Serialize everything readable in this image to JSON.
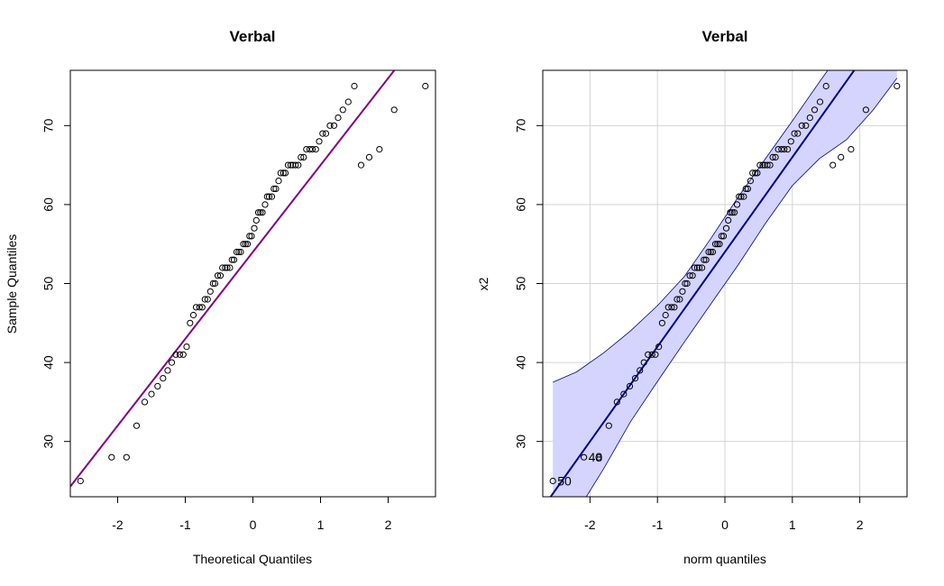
{
  "chart_data": [
    {
      "type": "scatter",
      "title": "Verbal",
      "xlabel": "Theoretical Quantiles",
      "ylabel": "Sample Quantiles",
      "xlim": [
        -2.7,
        2.7
      ],
      "ylim": [
        23,
        77
      ],
      "x_ticks": [
        -2,
        -1,
        0,
        1,
        2
      ],
      "y_ticks": [
        30,
        40,
        50,
        60,
        70
      ],
      "grid": false,
      "reference_line": {
        "color": "#800080",
        "intercept": 54.0,
        "slope": 11.0
      },
      "series": [
        {
          "x": [
            -2.55,
            -2.09,
            -1.87,
            -1.72,
            -1.6,
            -1.5,
            -1.41,
            -1.33,
            -1.26,
            -1.2,
            -1.14,
            -1.08,
            -1.03,
            -0.98,
            -0.93,
            -0.88,
            -0.84,
            -0.79,
            -0.75,
            -0.71,
            -0.67,
            -0.63,
            -0.59,
            -0.56,
            -0.52,
            -0.48,
            -0.45,
            -0.41,
            -0.38,
            -0.34,
            -0.31,
            -0.28,
            -0.24,
            -0.21,
            -0.18,
            -0.14,
            -0.11,
            -0.08,
            -0.05,
            -0.02,
            0.02,
            0.05,
            0.08,
            0.11,
            0.14,
            0.18,
            0.21,
            0.24,
            0.28,
            0.31,
            0.34,
            0.38,
            0.41,
            0.45,
            0.48,
            0.52,
            0.56,
            0.59,
            0.63,
            0.67,
            0.71,
            0.75,
            0.79,
            0.84,
            0.88,
            0.93,
            0.98,
            1.03,
            1.08,
            1.14,
            1.2,
            1.26,
            1.33,
            1.41,
            1.5,
            1.6,
            1.72,
            1.87,
            2.09,
            2.55
          ],
          "y": [
            25,
            28,
            28,
            32,
            35,
            36,
            37,
            38,
            39,
            40,
            41,
            41,
            41,
            42,
            45,
            46,
            47,
            47,
            47,
            48,
            48,
            49,
            50,
            50,
            51,
            51,
            52,
            52,
            52,
            52,
            53,
            53,
            54,
            54,
            54,
            55,
            55,
            55,
            56,
            56,
            57,
            58,
            59,
            59,
            59,
            60,
            61,
            61,
            61,
            62,
            62,
            63,
            64,
            64,
            64,
            65,
            65,
            65,
            65,
            65,
            66,
            66,
            67,
            67,
            67,
            67,
            68,
            69,
            69,
            70,
            70,
            71,
            72,
            73,
            75,
            65,
            66,
            67,
            72,
            75
          ]
        }
      ]
    },
    {
      "type": "scatter",
      "title": "Verbal",
      "xlabel": "norm quantiles",
      "ylabel": "x2",
      "xlim": [
        -2.7,
        2.7
      ],
      "ylim": [
        23,
        77
      ],
      "x_ticks": [
        -2,
        -1,
        0,
        1,
        2
      ],
      "y_ticks": [
        30,
        40,
        50,
        60,
        70
      ],
      "grid": true,
      "reference_line": {
        "color": "#00008B",
        "intercept": 54.0,
        "slope": 12.0
      },
      "envelope": {
        "color": "#D4D4FF",
        "x": [
          -2.55,
          -2.2,
          -1.8,
          -1.4,
          -1.0,
          -0.6,
          -0.2,
          0.2,
          0.6,
          1.0,
          1.4,
          1.8,
          2.2,
          2.55
        ],
        "upper": [
          37.5,
          38.8,
          41.2,
          44.0,
          47.2,
          50.9,
          55.8,
          61.0,
          65.8,
          70.6,
          75.5,
          80.3,
          85.0,
          89.0
        ],
        "lower": [
          18.0,
          21.0,
          26.5,
          32.5,
          37.6,
          42.6,
          47.5,
          52.4,
          57.6,
          62.4,
          65.8,
          68.2,
          72.0,
          76.0
        ]
      },
      "point_labels": [
        {
          "label": "50",
          "x": -2.55,
          "y": 25
        },
        {
          "label": "48",
          "x": -2.09,
          "y": 28
        }
      ],
      "series": [
        {
          "x": [
            -2.55,
            -2.09,
            -1.87,
            -1.72,
            -1.6,
            -1.5,
            -1.41,
            -1.33,
            -1.26,
            -1.2,
            -1.14,
            -1.08,
            -1.03,
            -0.98,
            -0.93,
            -0.88,
            -0.84,
            -0.79,
            -0.75,
            -0.71,
            -0.67,
            -0.63,
            -0.59,
            -0.56,
            -0.52,
            -0.48,
            -0.45,
            -0.41,
            -0.38,
            -0.34,
            -0.31,
            -0.28,
            -0.24,
            -0.21,
            -0.18,
            -0.14,
            -0.11,
            -0.08,
            -0.05,
            -0.02,
            0.02,
            0.05,
            0.08,
            0.11,
            0.14,
            0.18,
            0.21,
            0.24,
            0.28,
            0.31,
            0.34,
            0.38,
            0.41,
            0.45,
            0.48,
            0.52,
            0.56,
            0.59,
            0.63,
            0.67,
            0.71,
            0.75,
            0.79,
            0.84,
            0.88,
            0.93,
            0.98,
            1.03,
            1.08,
            1.14,
            1.2,
            1.26,
            1.33,
            1.41,
            1.5,
            1.6,
            1.72,
            1.87,
            2.09,
            2.55
          ],
          "y": [
            25,
            28,
            28,
            32,
            35,
            36,
            37,
            38,
            39,
            40,
            41,
            41,
            41,
            42,
            45,
            46,
            47,
            47,
            47,
            48,
            48,
            49,
            50,
            50,
            51,
            51,
            52,
            52,
            52,
            52,
            53,
            53,
            54,
            54,
            54,
            55,
            55,
            55,
            56,
            56,
            57,
            58,
            59,
            59,
            59,
            60,
            61,
            61,
            61,
            62,
            62,
            63,
            64,
            64,
            64,
            65,
            65,
            65,
            65,
            65,
            66,
            66,
            67,
            67,
            67,
            67,
            68,
            69,
            69,
            70,
            70,
            71,
            72,
            73,
            75,
            65,
            66,
            67,
            72,
            75
          ]
        }
      ]
    }
  ]
}
